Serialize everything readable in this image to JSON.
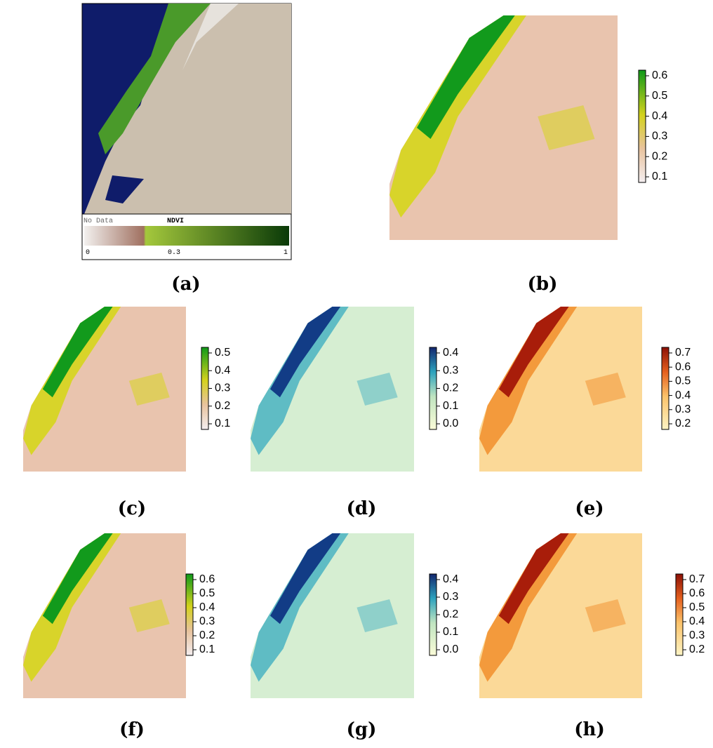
{
  "panels": [
    {
      "label": "(a)",
      "legend": {
        "title": "NDVI",
        "no_data": "No Data",
        "ticks": [
          "0",
          "0.3",
          "1"
        ]
      }
    },
    {
      "label": "(b)",
      "ticks": [
        "0.6",
        "0.5",
        "0.4",
        "0.3",
        "0.2",
        "0.1"
      ]
    },
    {
      "label": "(c)",
      "ticks": [
        "0.5",
        "0.4",
        "0.3",
        "0.2",
        "0.1"
      ]
    },
    {
      "label": "(d)",
      "ticks": [
        "0.4",
        "0.3",
        "0.2",
        "0.1",
        "0.0"
      ]
    },
    {
      "label": "(e)",
      "ticks": [
        "0.7",
        "0.6",
        "0.5",
        "0.4",
        "0.3",
        "0.2"
      ]
    },
    {
      "label": "(f)",
      "ticks": [
        "0.6",
        "0.5",
        "0.4",
        "0.3",
        "0.2",
        "0.1"
      ]
    },
    {
      "label": "(g)",
      "ticks": [
        "0.4",
        "0.3",
        "0.2",
        "0.1",
        "0.0"
      ]
    },
    {
      "label": "(h)",
      "ticks": [
        "0.7",
        "0.6",
        "0.5",
        "0.4",
        "0.3",
        "0.2"
      ]
    }
  ]
}
